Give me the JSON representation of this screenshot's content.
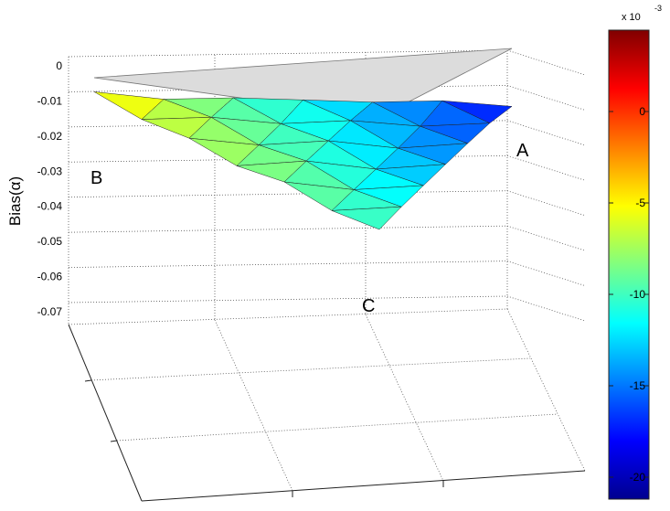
{
  "chart_data": {
    "type": "surface3d",
    "zlabel": "Bias(α)",
    "zlim": [
      -0.07,
      0
    ],
    "zticks": [
      0,
      -0.01,
      -0.02,
      -0.03,
      -0.04,
      -0.05,
      -0.06,
      -0.07
    ],
    "annotations": [
      "A",
      "B",
      "C"
    ],
    "surface": {
      "z": [
        [
          -0.004,
          -0.0075,
          -0.0085,
          -0.0105,
          -0.0125,
          -0.0135,
          -0.0165
        ],
        [
          -0.01,
          -0.0108,
          -0.014,
          -0.0145,
          -0.0175,
          -0.018
        ],
        [
          -0.0135,
          -0.0168,
          -0.017,
          -0.0205,
          -0.0205
        ],
        [
          -0.0195,
          -0.0195,
          -0.0232,
          -0.0232
        ],
        [
          -0.0222,
          -0.0258,
          -0.026
        ],
        [
          -0.0285,
          -0.0288
        ],
        [
          -0.032
        ]
      ],
      "c": [
        [
          -4,
          -7,
          -10,
          -11,
          -14,
          -15,
          -19
        ],
        [
          -5.8,
          -8,
          -10.2,
          -12.3,
          -14.5,
          -16.7
        ],
        [
          -6.7,
          -8.8,
          -11,
          -13.2,
          -15.3
        ],
        [
          -7.5,
          -9.7,
          -11.8,
          -14
        ],
        [
          -8.3,
          -10.5,
          -12.7
        ],
        [
          -9.2,
          -11.3
        ],
        [
          -10
        ]
      ]
    },
    "colorbar": {
      "clim": [
        -21.2,
        4.45
      ],
      "ticks": [
        0,
        -5,
        -10,
        -15,
        -20
      ],
      "multiplier_label": "x 10",
      "multiplier_exponent": "-3"
    }
  }
}
